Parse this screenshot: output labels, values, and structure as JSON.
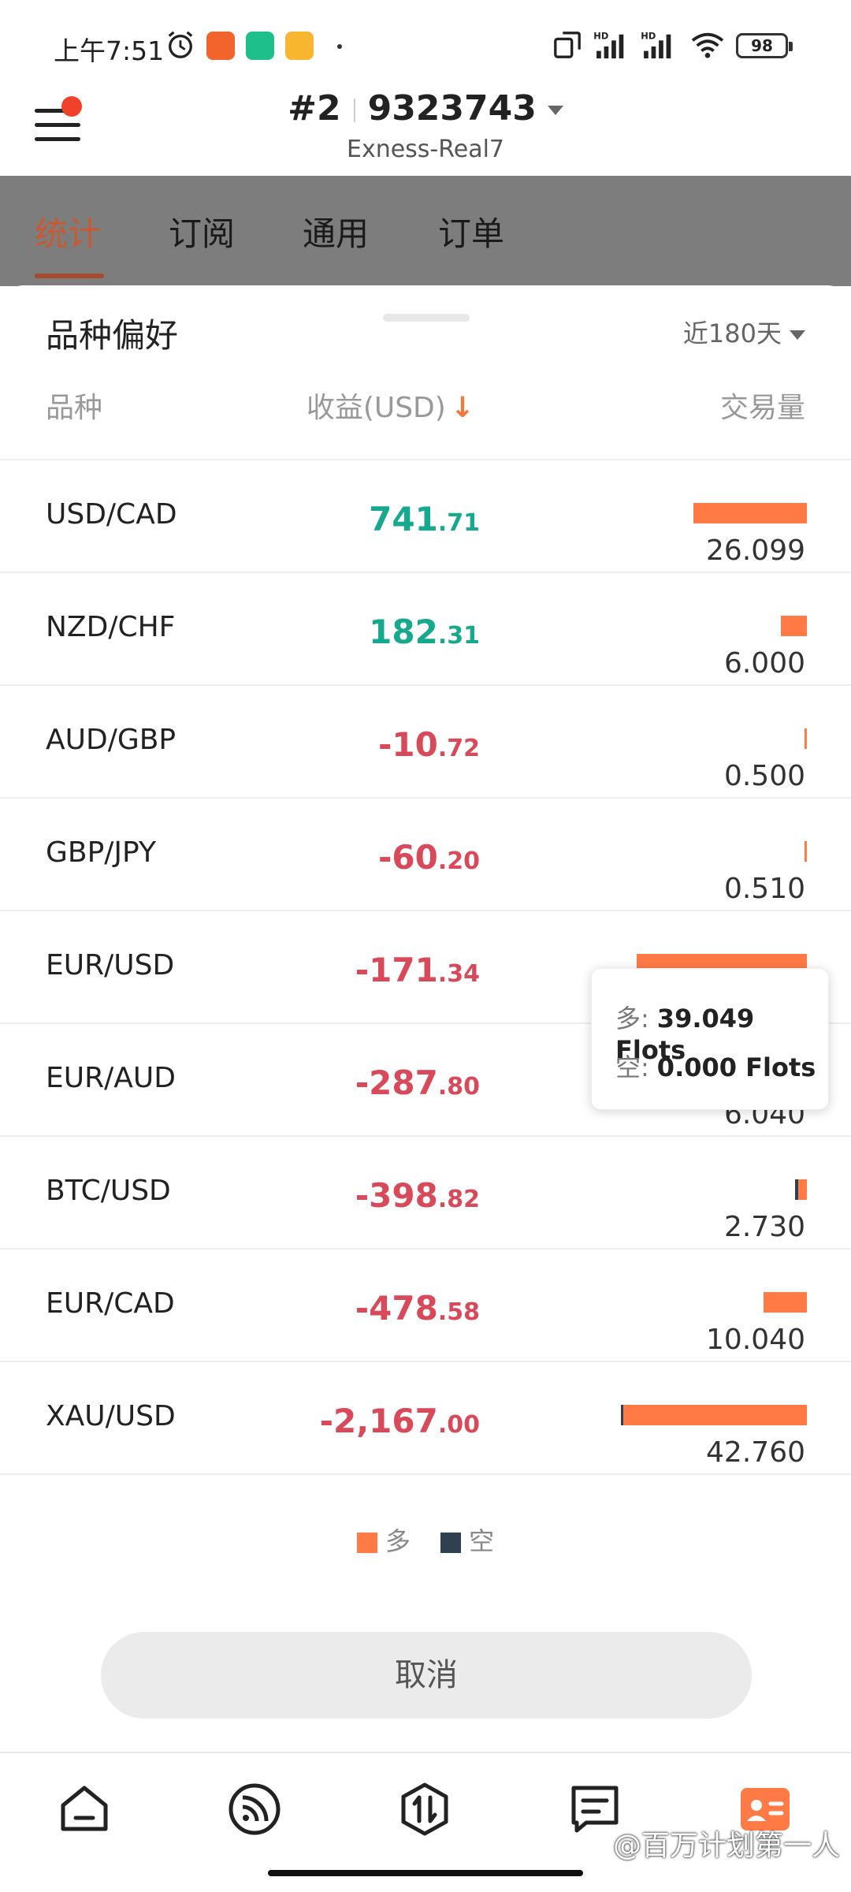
{
  "status_bar": {
    "time": "上午7:51",
    "battery": "98",
    "app_icons": [
      "alarm-icon",
      "app-icon-orange",
      "app-icon-green",
      "app-icon-yellow"
    ],
    "right_icons": [
      "screen-cast-icon",
      "signal-hd-1-icon",
      "signal-hd-2-icon",
      "wifi-icon",
      "battery-icon"
    ]
  },
  "header": {
    "account_prefix": "#2",
    "account_number": "9323743",
    "server": "Exness-Real7"
  },
  "tabs": [
    {
      "label": "统计",
      "active": true
    },
    {
      "label": "订阅",
      "active": false
    },
    {
      "label": "通用",
      "active": false
    },
    {
      "label": "订单",
      "active": false
    }
  ],
  "sheet": {
    "title": "品种偏好",
    "period": "近180天",
    "columns": {
      "symbol": "品种",
      "profit": "收益(USD)",
      "volume": "交易量"
    },
    "sort_arrow": "↓",
    "rows": [
      {
        "symbol": "USD/CAD",
        "profit_int": "741",
        "profit_dec": ".71",
        "sign": "pos",
        "volume": "26.099",
        "long": 26.099,
        "short": 0
      },
      {
        "symbol": "NZD/CHF",
        "profit_int": "182",
        "profit_dec": ".31",
        "sign": "pos",
        "volume": "6.000",
        "long": 6.0,
        "short": 0
      },
      {
        "symbol": "AUD/GBP",
        "profit_int": "-10",
        "profit_dec": ".72",
        "sign": "neg",
        "volume": "0.500",
        "long": 0.5,
        "short": 0
      },
      {
        "symbol": "GBP/JPY",
        "profit_int": "-60",
        "profit_dec": ".20",
        "sign": "neg",
        "volume": "0.510",
        "long": 0.51,
        "short": 0
      },
      {
        "symbol": "EUR/USD",
        "profit_int": "-171",
        "profit_dec": ".34",
        "sign": "neg",
        "volume": "",
        "long": 39.049,
        "short": 0
      },
      {
        "symbol": "EUR/AUD",
        "profit_int": "-287",
        "profit_dec": ".80",
        "sign": "neg",
        "volume": "6.040",
        "long": 6.04,
        "short": 0
      },
      {
        "symbol": "BTC/USD",
        "profit_int": "-398",
        "profit_dec": ".82",
        "sign": "neg",
        "volume": "2.730",
        "long": 2.0,
        "short": 0.73
      },
      {
        "symbol": "EUR/CAD",
        "profit_int": "-478",
        "profit_dec": ".58",
        "sign": "neg",
        "volume": "10.040",
        "long": 10.04,
        "short": 0
      },
      {
        "symbol": "XAU/USD",
        "profit_int": "-2,167",
        "profit_dec": ".00",
        "sign": "neg",
        "volume": "42.760",
        "long": 42.2,
        "short": 0.56
      }
    ],
    "bar_scale_max": 42.76,
    "tooltip": {
      "long_label": "多:",
      "long_value": "39.049 Flots",
      "short_label": "空:",
      "short_value": "0.000 Flots"
    },
    "legend": {
      "long": "多",
      "short": "空",
      "long_color": "#ff7a45",
      "short_color": "#2f4150"
    },
    "cancel_label": "取消"
  },
  "bottom_nav": {
    "items": [
      "home-icon",
      "feed-icon",
      "trade-icon",
      "messages-icon",
      "profile-icon"
    ],
    "watermark": "@百万计划第一人"
  }
}
